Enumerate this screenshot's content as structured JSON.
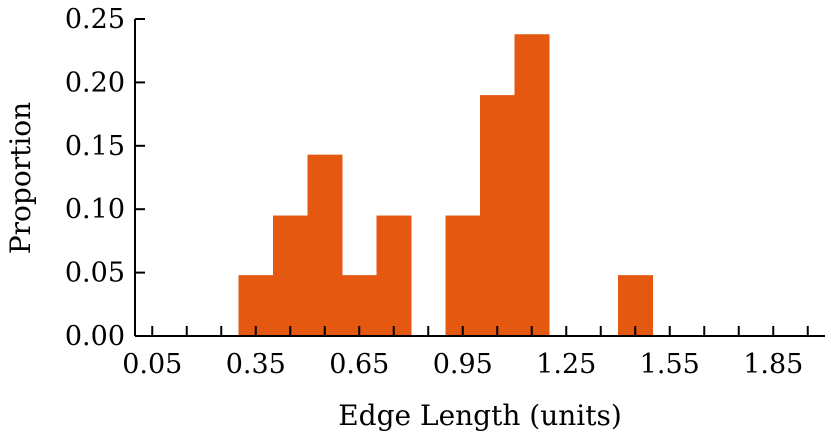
{
  "chart_data": {
    "type": "bar",
    "xlabel": "Edge Length (units)",
    "ylabel": "Proportion",
    "xlim": [
      0.0,
      2.0
    ],
    "ylim": [
      0.0,
      0.25
    ],
    "x_ticks": [
      "0.05",
      "0.35",
      "0.65",
      "0.95",
      "1.25",
      "1.55",
      "1.85"
    ],
    "x_tick_values": [
      0.05,
      0.35,
      0.65,
      0.95,
      1.25,
      1.55,
      1.85
    ],
    "y_ticks": [
      "0.00",
      "0.05",
      "0.10",
      "0.15",
      "0.20",
      "0.25"
    ],
    "y_tick_values": [
      0.0,
      0.05,
      0.1,
      0.15,
      0.2,
      0.25
    ],
    "minor_x_step": 0.1,
    "bin_width": 0.1,
    "bins": [
      {
        "start": 0.3,
        "end": 0.4,
        "value": 0.048
      },
      {
        "start": 0.4,
        "end": 0.5,
        "value": 0.095
      },
      {
        "start": 0.5,
        "end": 0.6,
        "value": 0.143
      },
      {
        "start": 0.6,
        "end": 0.7,
        "value": 0.048
      },
      {
        "start": 0.7,
        "end": 0.8,
        "value": 0.095
      },
      {
        "start": 0.9,
        "end": 1.0,
        "value": 0.095
      },
      {
        "start": 1.0,
        "end": 1.1,
        "value": 0.19
      },
      {
        "start": 1.1,
        "end": 1.2,
        "value": 0.238
      },
      {
        "start": 1.4,
        "end": 1.5,
        "value": 0.048
      }
    ],
    "bar_color": "#E55812",
    "grid": false
  }
}
